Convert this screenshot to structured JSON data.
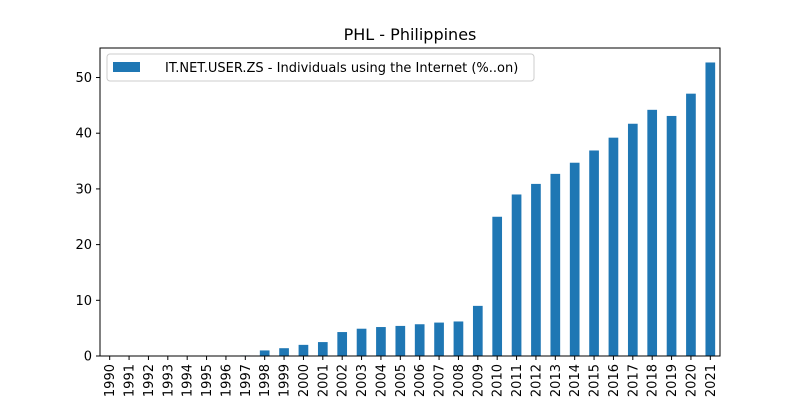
{
  "chart_data": {
    "type": "bar",
    "title": "PHL - Philippines",
    "xlabel": "",
    "ylabel": "",
    "categories": [
      "1990",
      "1991",
      "1992",
      "1993",
      "1994",
      "1995",
      "1996",
      "1997",
      "1998",
      "1999",
      "2000",
      "2001",
      "2002",
      "2003",
      "2004",
      "2005",
      "2006",
      "2007",
      "2008",
      "2009",
      "2010",
      "2011",
      "2012",
      "2013",
      "2014",
      "2015",
      "2016",
      "2017",
      "2018",
      "2019",
      "2020",
      "2021"
    ],
    "series": [
      {
        "name": "IT.NET.USER.ZS - Individuals using the Internet (%..on)",
        "values": [
          0,
          0,
          0,
          0,
          0.01,
          0.02,
          0.05,
          0.1,
          1.0,
          1.4,
          2.0,
          2.5,
          4.3,
          4.9,
          5.2,
          5.4,
          5.7,
          6.0,
          6.2,
          9.0,
          25.0,
          29.0,
          30.9,
          32.7,
          34.7,
          36.9,
          39.2,
          41.7,
          44.2,
          43.1,
          47.1,
          52.7
        ],
        "color": "#1f77b4"
      }
    ],
    "ylim": [
      0,
      55.3
    ],
    "yticks": [
      0,
      10,
      20,
      30,
      40,
      50
    ],
    "grid": false,
    "legend_position": "top-left"
  }
}
